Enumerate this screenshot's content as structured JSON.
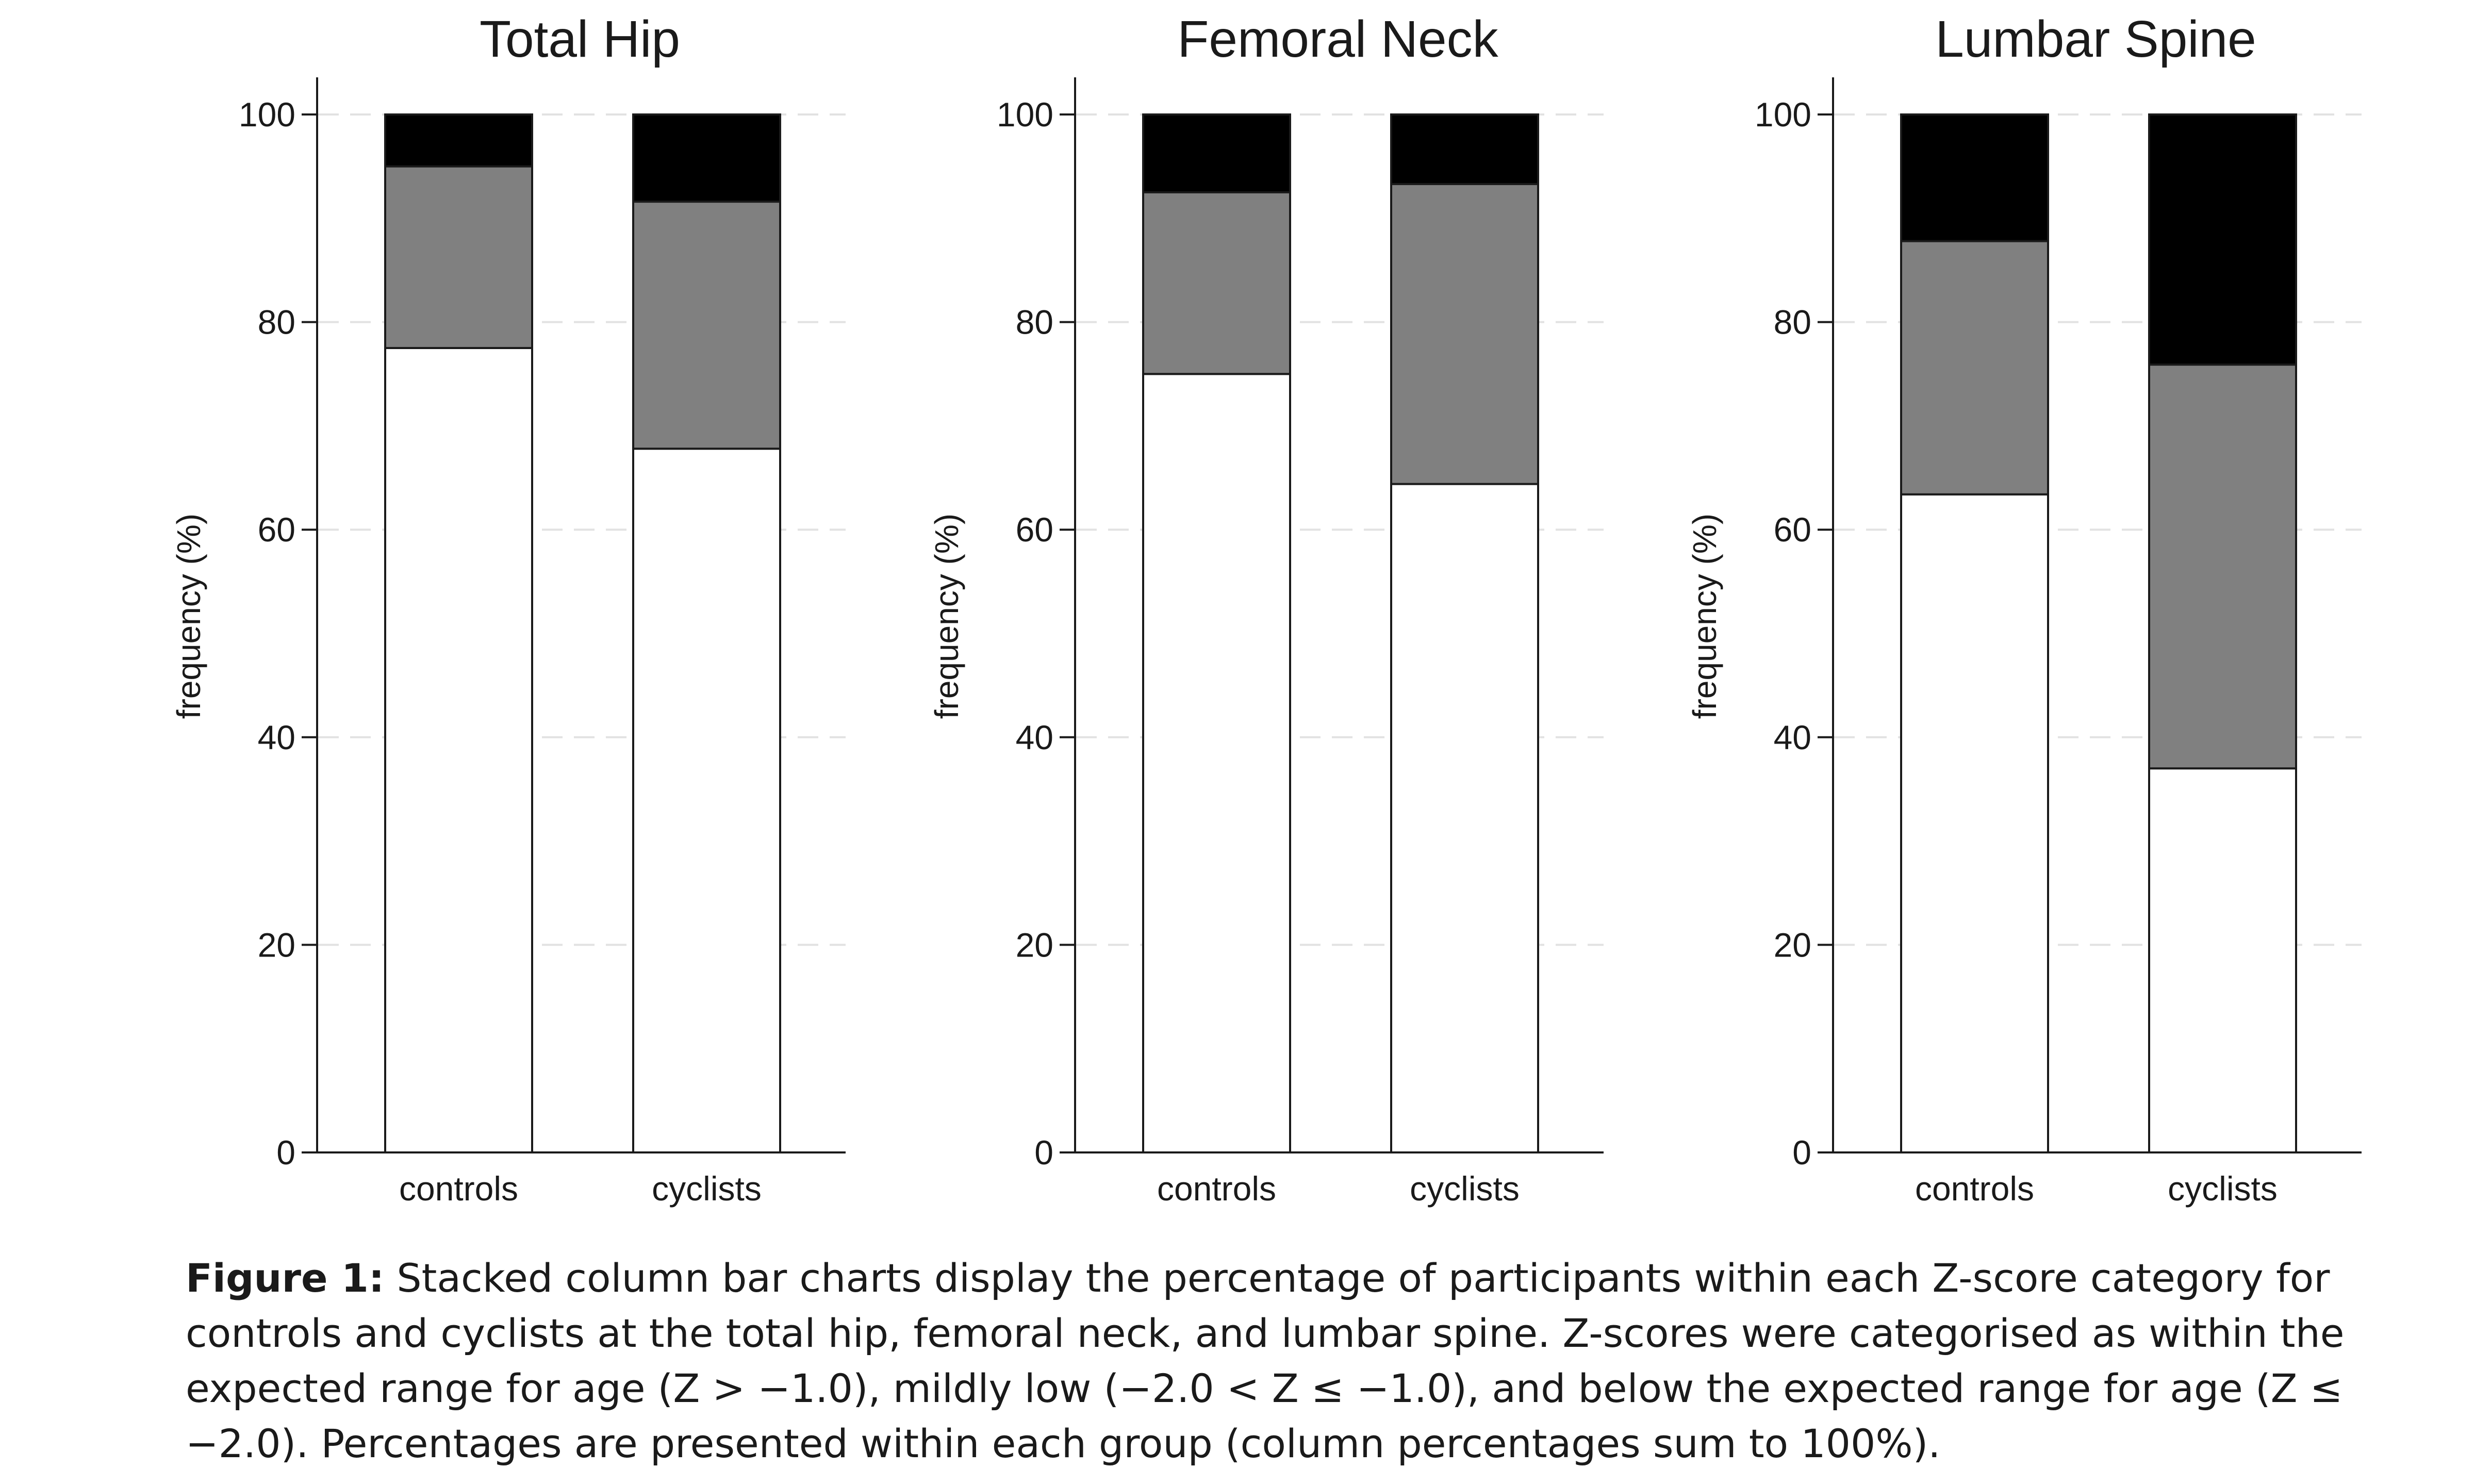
{
  "chart_data": [
    {
      "type": "bar",
      "stacked": true,
      "title": "Total Hip",
      "ylabel": "frequency (%)",
      "xlabel": "",
      "ylim": [
        0,
        100
      ],
      "yticks": [
        0,
        20,
        40,
        60,
        80,
        100
      ],
      "grid": "horizontal dashed",
      "categories": [
        "controls",
        "cyclists"
      ],
      "series": [
        {
          "values": [
            77.5,
            67.8
          ],
          "color": "#ffffff"
        },
        {
          "values": [
            17.5,
            23.8
          ],
          "color": "#808080"
        },
        {
          "values": [
            5.0,
            8.4
          ],
          "color": "#000000"
        }
      ]
    },
    {
      "type": "bar",
      "stacked": true,
      "title": "Femoral Neck",
      "ylabel": "frequency (%)",
      "xlabel": "",
      "ylim": [
        0,
        100
      ],
      "yticks": [
        0,
        20,
        40,
        60,
        80,
        100
      ],
      "grid": "horizontal dashed",
      "categories": [
        "controls",
        "cyclists"
      ],
      "series": [
        {
          "values": [
            75.0,
            64.4
          ],
          "color": "#ffffff"
        },
        {
          "values": [
            17.5,
            28.9
          ],
          "color": "#808080"
        },
        {
          "values": [
            7.5,
            6.7
          ],
          "color": "#000000"
        }
      ]
    },
    {
      "type": "bar",
      "stacked": true,
      "title": "Lumbar Spine",
      "ylabel": "frequency (%)",
      "xlabel": "",
      "ylim": [
        0,
        100
      ],
      "yticks": [
        0,
        20,
        40,
        60,
        80,
        100
      ],
      "grid": "horizontal dashed",
      "categories": [
        "controls",
        "cyclists"
      ],
      "series": [
        {
          "values": [
            63.4,
            37.0
          ],
          "color": "#ffffff"
        },
        {
          "values": [
            24.4,
            38.9
          ],
          "color": "#808080"
        },
        {
          "values": [
            12.2,
            24.1
          ],
          "color": "#000000"
        }
      ]
    }
  ],
  "caption": {
    "label": "Figure 1:",
    "text": " Stacked column bar charts display the percentage of participants within each Z-score category for controls and cyclists at the total hip, femoral neck, and lumbar spine. Z-scores were categorised as within the expected range for age (Z > −1.0), mildly low (−2.0 < Z ≤ −1.0), and below the expected range for age (Z ≤ −2.0). Percentages are presented within each group (column percentages sum to 100%)."
  }
}
